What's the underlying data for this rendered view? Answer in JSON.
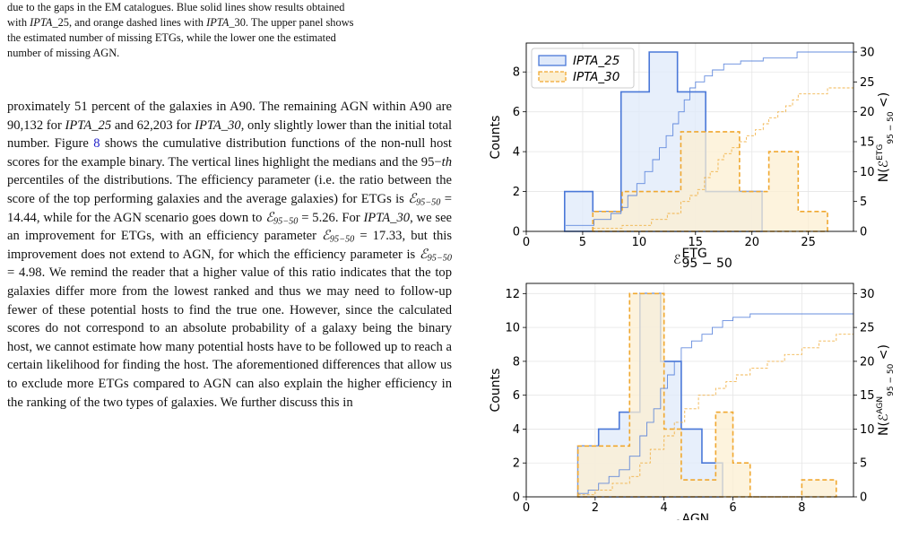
{
  "caption": {
    "line1": "due to the gaps in the EM catalogues. Blue solid lines show results obtained",
    "line2a": "with ",
    "ipta25": "IPTA",
    "ipta25_sfx": "_25, and orange dashed lines with ",
    "ipta30": "IPTA",
    "ipta30_sfx": "_30. The upper panel shows",
    "line3": "the estimated number of missing ETGs, while the lower one the estimated",
    "line4": "number of missing AGN."
  },
  "body": {
    "p1": "proximately 51 percent of the galaxies in A90. The remaining AGN within A90 are 90,132 for ",
    "ipta25": "IPTA_25",
    "p2": " and 62,203 for ",
    "ipta30": "IPTA_30",
    "p3": ", only slightly lower than the initial total number. Figure ",
    "fig": "8",
    "p4": " shows the cumulative distribution functions of the non-null host scores for the example binary. The vertical lines highlight the medians and the 95−",
    "th": "th",
    "p5": " percentiles of the distributions. The efficiency parameter (i.e. the ratio between the score of the top performing galaxies and the average galaxies) for ETGs is ",
    "eq1": "= 14.44",
    "p6": ", while for the AGN scenario goes down to ",
    "eq2": "= 5.26",
    "p7": ". For ",
    "p8": ", we see an improvement for ETGs, with an efficiency parameter ",
    "eq3": "= 17.33",
    "p9": ", but this improvement does not extend to AGN, for which the efficiency parameter is ",
    "eq4": "= 4.98",
    "p10": ". We remind the reader that a higher value of this ratio indicates that the top galaxies differ more from the lowest ranked and thus we may need to follow-up fewer of these potential hosts to find the true one. However, since the calculated scores do not correspond to an absolute probability of a galaxy being the binary host, we cannot estimate how many potential hosts have to be followed up to reach a certain likelihood for finding the host. The aforementioned differences that allow us to exclude more ETGs compared to AGN can also explain the higher efficiency in the ranking of the two types of galaxies. We further discuss this in",
    "eps_symbol": "ℰ",
    "eps_sub": "95−50"
  },
  "colors": {
    "blue": "#4a78d8",
    "orange": "#f0a830",
    "blue_fill": "#dfe9fa",
    "orange_fill": "#fcefd2"
  },
  "chart_data": [
    {
      "type": "histogram",
      "ylabel": "Counts",
      "right_ylabel": "N(ℰ^ETG_95−50 <)",
      "xlabel_main": "ℰ",
      "xlabel_sup": "ETG",
      "xlabel_sub": "95 − 50",
      "xlim": [
        0,
        29
      ],
      "ylim": [
        0,
        9.45
      ],
      "right_ylim": [
        0,
        31.5
      ],
      "xticks": [
        0,
        5,
        10,
        15,
        20,
        25
      ],
      "yticks": [
        0,
        2,
        4,
        6,
        8
      ],
      "right_yticks": [
        0,
        5,
        10,
        15,
        20,
        25,
        30
      ],
      "legend": {
        "placement": "top-left",
        "entries": [
          "IPTA_25",
          "IPTA_30"
        ]
      },
      "series": [
        {
          "name": "IPTA_25",
          "style": "solid",
          "edges": [
            3.4,
            5.9,
            8.4,
            10.9,
            13.4,
            15.9,
            18.4,
            20.9
          ],
          "counts": [
            2,
            1,
            7,
            9,
            7,
            2,
            2
          ],
          "cumulative": [
            [
              3.5,
              1
            ],
            [
              5.8,
              1
            ],
            [
              6,
              2
            ],
            [
              7.5,
              3
            ],
            [
              8.4,
              4
            ],
            [
              9,
              6
            ],
            [
              9.8,
              8
            ],
            [
              10.5,
              10
            ],
            [
              11.2,
              12
            ],
            [
              11.8,
              14
            ],
            [
              12.4,
              16
            ],
            [
              13,
              18
            ],
            [
              13.5,
              20
            ],
            [
              14,
              22
            ],
            [
              14.5,
              24
            ],
            [
              15,
              25
            ],
            [
              15.8,
              26
            ],
            [
              16.5,
              27
            ],
            [
              17.5,
              28
            ],
            [
              19,
              28.5
            ],
            [
              21,
              29
            ],
            [
              24,
              30
            ],
            [
              29,
              30
            ]
          ]
        },
        {
          "name": "IPTA_30",
          "style": "dashed",
          "edges": [
            5.9,
            8.5,
            11.1,
            13.7,
            16.3,
            18.9,
            21.5,
            24.1,
            26.7
          ],
          "counts": [
            1,
            2,
            2,
            5,
            5,
            2,
            4,
            1
          ],
          "cumulative": [
            [
              5.9,
              0.5
            ],
            [
              8.5,
              1
            ],
            [
              11.1,
              2
            ],
            [
              12.5,
              3
            ],
            [
              13.7,
              5
            ],
            [
              14.5,
              6
            ],
            [
              15.2,
              7
            ],
            [
              15.8,
              9
            ],
            [
              16.3,
              10
            ],
            [
              17,
              12
            ],
            [
              17.5,
              13
            ],
            [
              18.2,
              14
            ],
            [
              18.9,
              15
            ],
            [
              19.5,
              16
            ],
            [
              20.3,
              17
            ],
            [
              21,
              18
            ],
            [
              21.5,
              19
            ],
            [
              22.3,
              20
            ],
            [
              23,
              21
            ],
            [
              23.6,
              22
            ],
            [
              24.1,
              23
            ],
            [
              26.7,
              24
            ],
            [
              29,
              24
            ]
          ]
        }
      ]
    },
    {
      "type": "histogram",
      "ylabel": "Counts",
      "right_ylabel": "N(ℰ^AGN_95−50 <)",
      "xlabel_main": "ℰ",
      "xlabel_sup": "AGN",
      "xlabel_sub": "95 − 50",
      "xlim": [
        0,
        9.5
      ],
      "ylim": [
        0,
        12.6
      ],
      "right_ylim": [
        0,
        31.5
      ],
      "xticks": [
        0,
        2,
        4,
        6,
        8
      ],
      "yticks": [
        0,
        2,
        4,
        6,
        8,
        10,
        12
      ],
      "right_yticks": [
        0,
        5,
        10,
        15,
        20,
        25,
        30
      ],
      "series": [
        {
          "name": "IPTA_25",
          "style": "solid",
          "edges": [
            1.5,
            2.1,
            2.7,
            3.3,
            3.9,
            4.5,
            5.1,
            5.7
          ],
          "counts": [
            3,
            4,
            5,
            12,
            8,
            4,
            2
          ],
          "cumulative": [
            [
              1.5,
              0.5
            ],
            [
              1.8,
              1
            ],
            [
              2.1,
              2
            ],
            [
              2.4,
              3
            ],
            [
              2.7,
              4
            ],
            [
              3,
              6
            ],
            [
              3.3,
              9
            ],
            [
              3.5,
              11
            ],
            [
              3.7,
              13
            ],
            [
              3.9,
              16
            ],
            [
              4.1,
              18
            ],
            [
              4.3,
              20
            ],
            [
              4.5,
              22
            ],
            [
              4.8,
              23
            ],
            [
              5.1,
              24
            ],
            [
              5.4,
              25
            ],
            [
              5.7,
              26
            ],
            [
              6,
              26.5
            ],
            [
              6.5,
              27
            ],
            [
              7,
              27
            ],
            [
              9.5,
              27
            ]
          ]
        },
        {
          "name": "IPTA_30",
          "style": "dashed",
          "edges": [
            1.5,
            2.0,
            2.5,
            3.0,
            3.5,
            4.0,
            4.5,
            5.0,
            5.5,
            6.0,
            6.5,
            7.0,
            7.5,
            8.0,
            8.5,
            9.0
          ],
          "counts": [
            3,
            3,
            3,
            12,
            12,
            4,
            1,
            1,
            5,
            2,
            0,
            0,
            0,
            1,
            1
          ],
          "cumulative": [
            [
              1.5,
              0.3
            ],
            [
              2,
              1
            ],
            [
              2.5,
              2
            ],
            [
              3,
              3
            ],
            [
              3.3,
              5
            ],
            [
              3.6,
              7
            ],
            [
              4,
              9
            ],
            [
              4.3,
              11
            ],
            [
              4.6,
              13
            ],
            [
              5,
              15
            ],
            [
              5.5,
              16
            ],
            [
              5.8,
              17
            ],
            [
              6.1,
              18
            ],
            [
              6.5,
              19
            ],
            [
              7,
              20
            ],
            [
              7.5,
              21
            ],
            [
              8,
              22
            ],
            [
              8.5,
              23
            ],
            [
              9,
              24
            ],
            [
              9.5,
              24
            ]
          ]
        }
      ]
    }
  ]
}
